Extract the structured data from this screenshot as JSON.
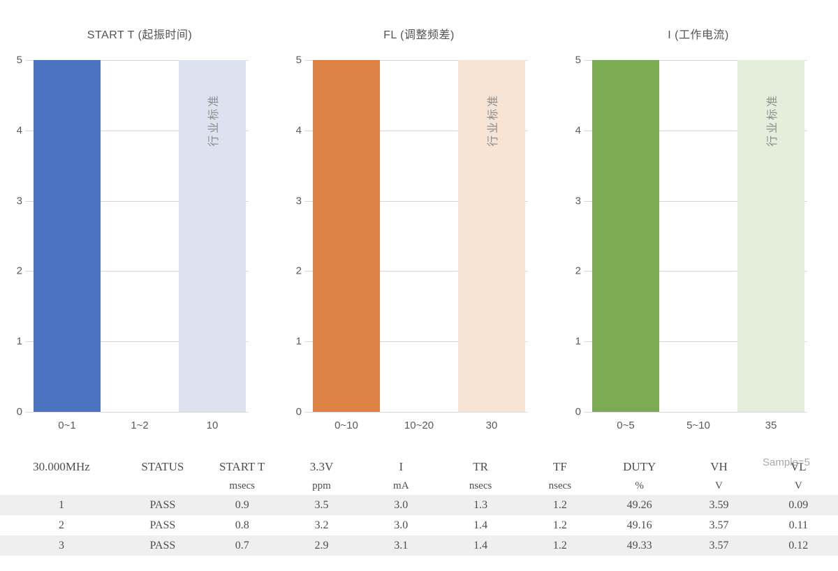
{
  "chart_data": [
    {
      "type": "bar",
      "title": "START T (起振时间)",
      "categories": [
        "0~1",
        "1~2",
        "10"
      ],
      "values": [
        5,
        0,
        5
      ],
      "colors": [
        "#4A72BE",
        "none",
        "#DCE2F0"
      ],
      "ylim": [
        0,
        5
      ],
      "yticks": [
        0,
        1,
        2,
        3,
        4,
        5
      ],
      "grid": true,
      "annotation": {
        "text": "行业标准",
        "category_index": 2,
        "rotation": -90
      }
    },
    {
      "type": "bar",
      "title": "FL (调整频差)",
      "categories": [
        "0~10",
        "10~20",
        "30"
      ],
      "values": [
        5,
        0,
        5
      ],
      "colors": [
        "#DD8244",
        "none",
        "#F8E4D5"
      ],
      "ylim": [
        0,
        5
      ],
      "yticks": [
        0,
        1,
        2,
        3,
        4,
        5
      ],
      "grid": true,
      "annotation": {
        "text": "行业标准",
        "category_index": 2,
        "rotation": -90
      }
    },
    {
      "type": "bar",
      "title": "I (工作电流)",
      "categories": [
        "0~5",
        "5~10",
        "35"
      ],
      "values": [
        5,
        0,
        5
      ],
      "colors": [
        "#7BAB53",
        "none",
        "#E3EEDB"
      ],
      "ylim": [
        0,
        5
      ],
      "yticks": [
        0,
        1,
        2,
        3,
        4,
        5
      ],
      "grid": true,
      "annotation": {
        "text": "行业标准",
        "category_index": 2,
        "rotation": -90
      }
    }
  ],
  "table": {
    "sample_note": "Sample=5",
    "stripe_color": "#efefef",
    "columns": [
      {
        "label": "30.000MHz",
        "unit": ""
      },
      {
        "label": "STATUS",
        "unit": ""
      },
      {
        "label": "START T",
        "unit": "msecs"
      },
      {
        "label": "3.3V",
        "unit": "ppm"
      },
      {
        "label": "I",
        "unit": "mA"
      },
      {
        "label": "TR",
        "unit": "nsecs"
      },
      {
        "label": "TF",
        "unit": "nsecs"
      },
      {
        "label": "DUTY",
        "unit": "%"
      },
      {
        "label": "VH",
        "unit": "V"
      },
      {
        "label": "VL",
        "unit": "V"
      }
    ],
    "rows": [
      [
        "1",
        "PASS",
        "0.9",
        "3.5",
        "3.0",
        "1.3",
        "1.2",
        "49.26",
        "3.59",
        "0.09"
      ],
      [
        "2",
        "PASS",
        "0.8",
        "3.2",
        "3.0",
        "1.4",
        "1.2",
        "49.16",
        "3.57",
        "0.11"
      ],
      [
        "3",
        "PASS",
        "0.7",
        "2.9",
        "3.1",
        "1.4",
        "1.2",
        "49.33",
        "3.57",
        "0.12"
      ]
    ]
  }
}
